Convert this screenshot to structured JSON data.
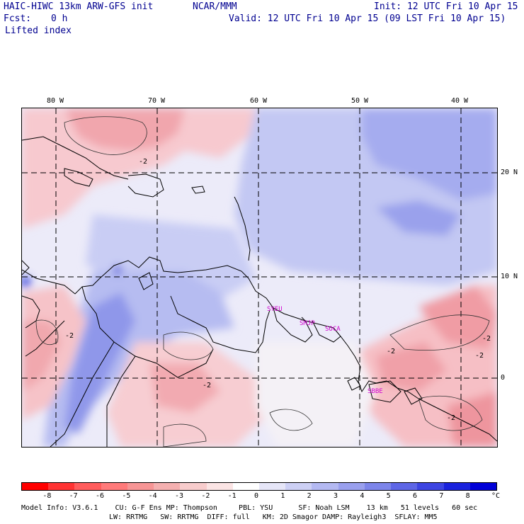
{
  "header": {
    "model": "HAIC-HIWC 13km ARW-GFS init",
    "center": "NCAR/MMM",
    "init": "Init: 12 UTC Fri 10 Apr 15",
    "fcst_label": "Fcst:",
    "fcst_value": "0 h",
    "valid": "Valid: 12 UTC Fri 10 Apr 15 (09 LST Fri 10 Apr 15)",
    "field": "Lifted index"
  },
  "axes": {
    "lon_ticks": [
      "80 W",
      "70 W",
      "60 W",
      "50 W",
      "40 W"
    ],
    "lat_ticks": [
      "20 N",
      "10 N",
      "0"
    ]
  },
  "stations": [
    "SYEU",
    "SMJP",
    "SOCA",
    "SBBE"
  ],
  "contour_labels": [
    "-2",
    "-2",
    "-2",
    "-2",
    "-2",
    "-2",
    "-2"
  ],
  "colorbar": {
    "colors": [
      "#ff0000",
      "#ff3333",
      "#ff5c5c",
      "#ff7a7a",
      "#f79595",
      "#f5b0b0",
      "#f8cccc",
      "#fbe4e4",
      "#ffffff",
      "#e6e6f8",
      "#cdd0f5",
      "#b4b9f2",
      "#9aa0ee",
      "#7d85ea",
      "#5e66e6",
      "#3d45e2",
      "#1a22dd",
      "#0000d8"
    ],
    "labels": [
      "-8",
      "-7",
      "-6",
      "-5",
      "-4",
      "-3",
      "-2",
      "-1",
      "0",
      "1",
      "2",
      "3",
      "4",
      "5",
      "6",
      "7",
      "8"
    ],
    "unit": "°C"
  },
  "footer": {
    "line1": "Model Info: V3.6.1    CU: G-F Ens MP: Thompson     PBL: YSU      SF: Noah LSM    13 km   51 levels   60 sec",
    "line2": "LW: RRTMG   SW: RRTMG  DIFF: full   KM: 2D Smagor DAMP: Rayleigh3  SFLAY: MM5"
  },
  "colors": {
    "text": "#000090",
    "station": "#d000d0"
  }
}
